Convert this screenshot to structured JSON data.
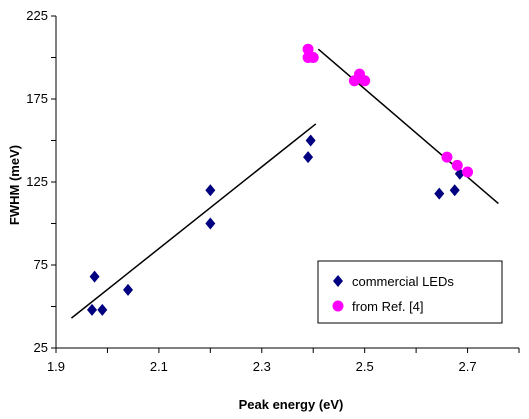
{
  "chart_data": {
    "type": "scatter",
    "title": "",
    "xlabel": "Peak energy (eV)",
    "ylabel": "FWHM (meV)",
    "xlim": [
      1.9,
      2.8
    ],
    "ylim": [
      25,
      225
    ],
    "x_ticks": [
      "1.9",
      "2.1",
      "2.3",
      "2.5",
      "2.7"
    ],
    "y_ticks": [
      "25",
      "75",
      "125",
      "175",
      "225"
    ],
    "x_tick_values": [
      1.9,
      2.1,
      2.3,
      2.5,
      2.7
    ],
    "y_tick_values": [
      25,
      75,
      125,
      175,
      225
    ],
    "grid": false,
    "legend_position": "bottom-right",
    "series": [
      {
        "name": "commercial LEDs",
        "marker": "diamond",
        "color": "#000080",
        "points": [
          [
            1.97,
            48
          ],
          [
            1.975,
            68
          ],
          [
            1.99,
            48
          ],
          [
            2.04,
            60
          ],
          [
            2.2,
            120
          ],
          [
            2.2,
            100
          ],
          [
            2.39,
            140
          ],
          [
            2.395,
            150
          ],
          [
            2.645,
            118
          ],
          [
            2.675,
            120
          ],
          [
            2.685,
            130
          ]
        ]
      },
      {
        "name": "from Ref. [4]",
        "marker": "circle",
        "color": "#FF00FF",
        "points": [
          [
            2.39,
            205
          ],
          [
            2.39,
            200
          ],
          [
            2.4,
            200
          ],
          [
            2.48,
            186
          ],
          [
            2.49,
            190
          ],
          [
            2.5,
            186
          ],
          [
            2.66,
            140
          ],
          [
            2.68,
            135
          ],
          [
            2.7,
            131
          ]
        ]
      }
    ],
    "trendlines": [
      {
        "from": [
          1.93,
          43
        ],
        "to": [
          2.405,
          160
        ],
        "color": "#000000"
      },
      {
        "from": [
          2.41,
          205
        ],
        "to": [
          2.76,
          112
        ],
        "color": "#000000"
      }
    ]
  }
}
